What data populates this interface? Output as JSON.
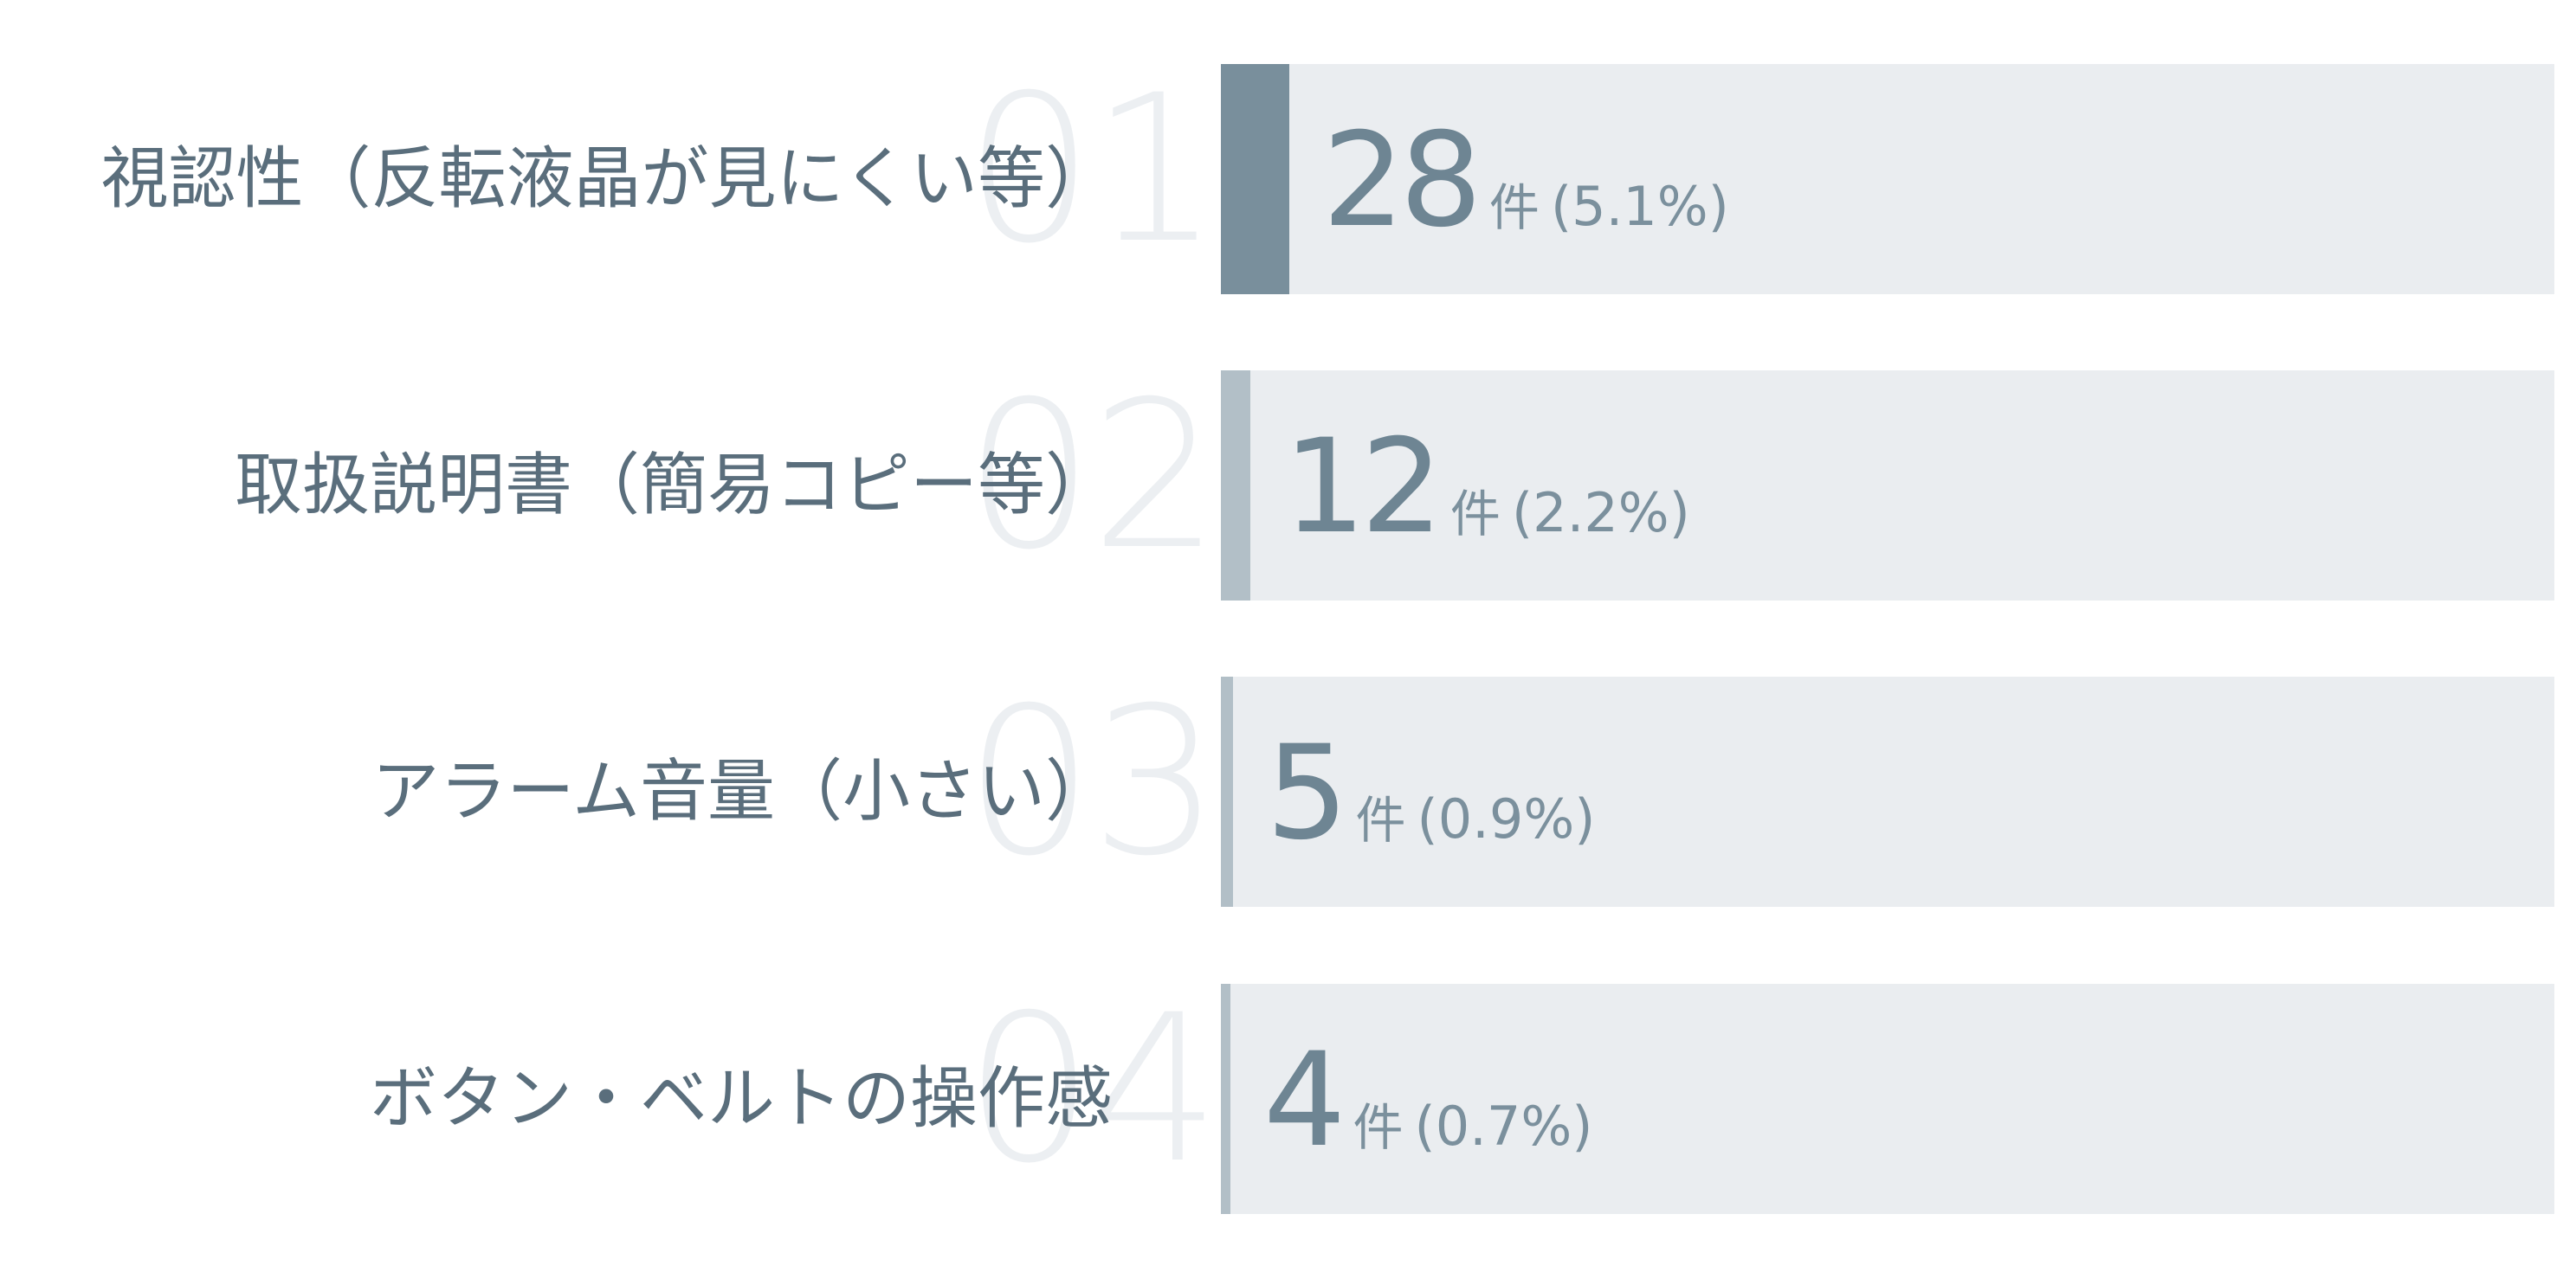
{
  "chart_data": {
    "type": "bar",
    "orientation": "horizontal",
    "categories": [
      "視認性（反転液晶が見にくい等）",
      "取扱説明書（簡易コピー等）",
      "アラーム音量（小さい）",
      "ボタン・ベルトの操作感"
    ],
    "ranks": [
      "01",
      "02",
      "03",
      "04"
    ],
    "values": [
      28,
      12,
      5,
      4
    ],
    "percent_labels": [
      "(5.1%)",
      "(2.2%)",
      "(0.9%)",
      "(0.7%)"
    ],
    "percents": [
      5.1,
      2.2,
      0.9,
      0.7
    ],
    "unit": "件",
    "xlim": [
      0,
      100
    ],
    "colors": {
      "top": "#798f9c",
      "other": "#b2bfc7",
      "track": "#eaedf0",
      "label": "#5a6e7c"
    }
  }
}
